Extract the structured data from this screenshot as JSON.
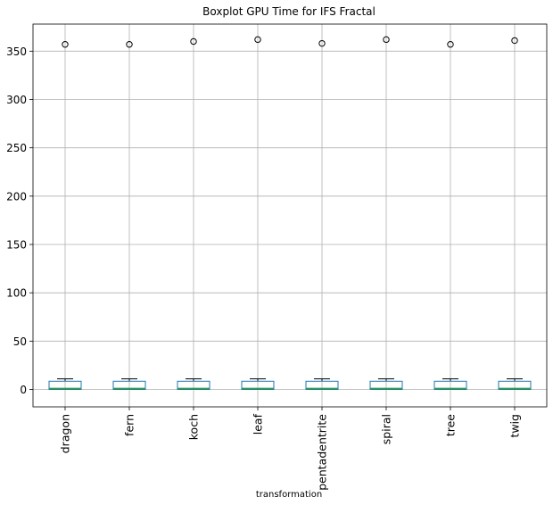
{
  "chart_data": {
    "type": "boxplot",
    "title": "Boxplot GPU Time for IFS Fractal",
    "xlabel": "transformation",
    "ylabel": "",
    "categories": [
      "dragon",
      "fern",
      "koch",
      "leaf",
      "pentadentrite",
      "spiral",
      "tree",
      "twig"
    ],
    "yticks": [
      0,
      50,
      100,
      150,
      200,
      250,
      300,
      350
    ],
    "ylim": [
      -18,
      378
    ],
    "grid": true,
    "boxes": [
      {
        "category": "dragon",
        "whislo": 0,
        "q1": 0,
        "median": 1,
        "q3": 8.5,
        "whishi": 11,
        "fliers": [
          357
        ]
      },
      {
        "category": "fern",
        "whislo": 0,
        "q1": 0,
        "median": 1,
        "q3": 8.5,
        "whishi": 11,
        "fliers": [
          357
        ]
      },
      {
        "category": "koch",
        "whislo": 0,
        "q1": 0,
        "median": 1,
        "q3": 8.5,
        "whishi": 11,
        "fliers": [
          360
        ]
      },
      {
        "category": "leaf",
        "whislo": 0,
        "q1": 0,
        "median": 1,
        "q3": 8.5,
        "whishi": 11,
        "fliers": [
          362
        ]
      },
      {
        "category": "pentadentrite",
        "whislo": 0,
        "q1": 0,
        "median": 1,
        "q3": 8.5,
        "whishi": 11,
        "fliers": [
          358
        ]
      },
      {
        "category": "spiral",
        "whislo": 0,
        "q1": 0,
        "median": 1,
        "q3": 8.5,
        "whishi": 11,
        "fliers": [
          362
        ]
      },
      {
        "category": "tree",
        "whislo": 0,
        "q1": 0,
        "median": 1,
        "q3": 8.5,
        "whishi": 11,
        "fliers": [
          357
        ]
      },
      {
        "category": "twig",
        "whislo": 0,
        "q1": 0,
        "median": 1,
        "q3": 8.5,
        "whishi": 11,
        "fliers": [
          361
        ]
      }
    ],
    "colors": {
      "box": "#1f77b4",
      "median": "#2ca02c",
      "whisker": "#000000",
      "grid": "#b0b0b0"
    }
  }
}
